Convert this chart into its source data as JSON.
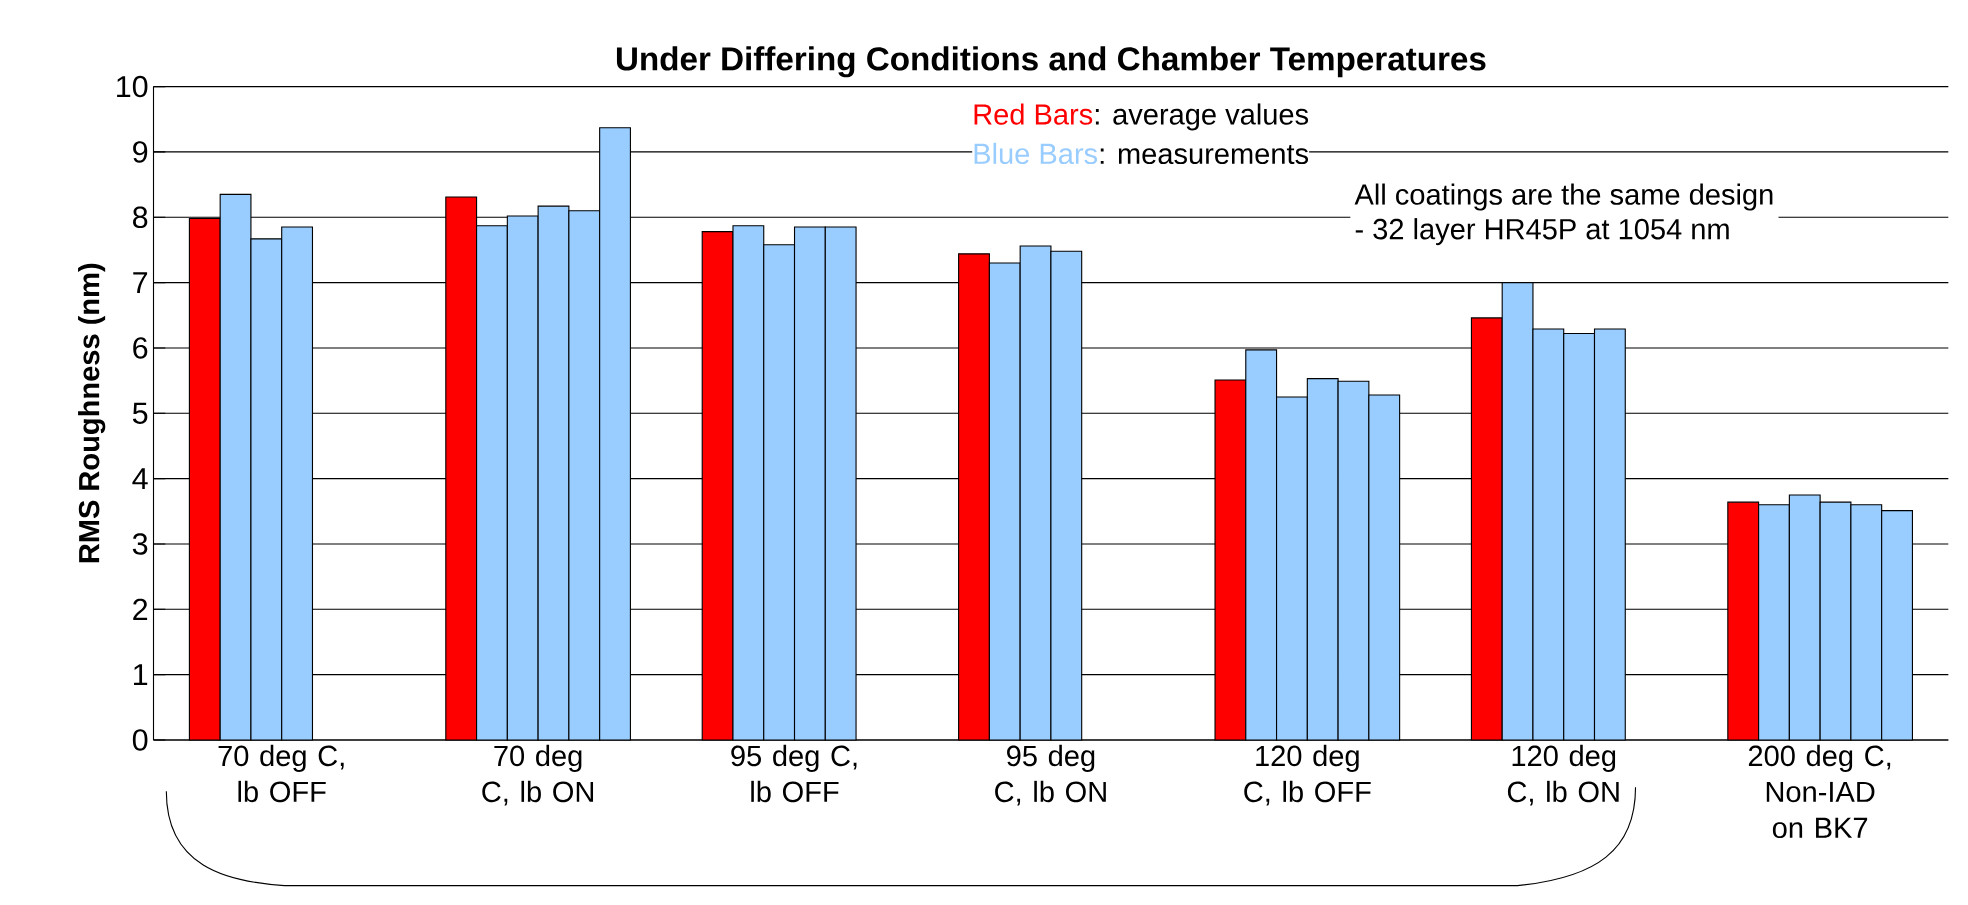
{
  "chart_data": {
    "type": "bar",
    "title": "Under Differing Conditions and Chamber Temperatures",
    "ylabel": "RMS Roughness (nm)",
    "categories": [
      "70 deg C, lb OFF",
      "70 deg C, lb ON",
      "95 deg C, lb OFF",
      "95 deg C, lb ON",
      "120 deg C, lb OFF",
      "120 deg C, lb ON",
      "200 deg C, Non-IAD on BK7"
    ],
    "series": [
      {
        "name": "Red Bars",
        "color": "#ff0000",
        "values": [
          7.98,
          8.31,
          7.78,
          7.44,
          5.51,
          6.46,
          3.64
        ]
      },
      {
        "name": "Blue Bars",
        "color": "#99ccff",
        "values": [
          8.35,
          7.87,
          7.87,
          7.3,
          5.97,
          7.0,
          3.6
        ]
      },
      {
        "color": "#99ccff",
        "values": [
          7.67,
          8.02,
          7.58,
          7.56,
          5.25,
          6.29,
          3.75
        ]
      },
      {
        "color": "#99ccff",
        "values": [
          7.85,
          8.17,
          7.85,
          7.48,
          5.53,
          6.22,
          3.64
        ]
      },
      {
        "color": "#99ccff",
        "values": [
          null,
          8.1,
          7.85,
          null,
          5.49,
          6.29,
          3.6
        ]
      },
      {
        "color": "#99ccff",
        "values": [
          null,
          9.37,
          null,
          null,
          5.28,
          null,
          3.51
        ]
      }
    ],
    "annotations": [
      ": average values",
      ": measurements",
      "All coatings are the same design",
      "- 32 layer HR45P at 1054 nm"
    ],
    "ylim": [
      0,
      10
    ],
    "yticks": [
      0,
      1,
      2,
      3,
      4,
      5,
      6,
      7,
      8,
      9,
      10
    ],
    "grid": "y"
  }
}
